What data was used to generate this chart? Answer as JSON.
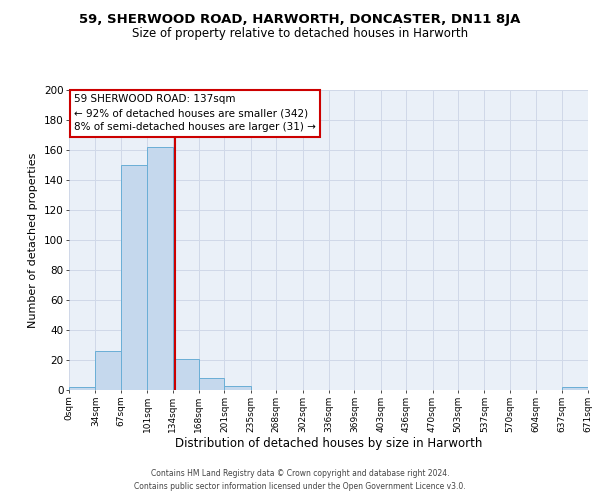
{
  "title": "59, SHERWOOD ROAD, HARWORTH, DONCASTER, DN11 8JA",
  "subtitle": "Size of property relative to detached houses in Harworth",
  "xlabel": "Distribution of detached houses by size in Harworth",
  "ylabel": "Number of detached properties",
  "bin_edges": [
    0,
    34,
    67,
    101,
    134,
    168,
    201,
    235,
    268,
    302,
    336,
    369,
    403,
    436,
    470,
    503,
    537,
    570,
    604,
    637,
    671
  ],
  "bar_heights": [
    2,
    26,
    150,
    162,
    21,
    8,
    3,
    0,
    0,
    0,
    0,
    0,
    0,
    0,
    0,
    0,
    0,
    0,
    0,
    2
  ],
  "bar_color": "#c5d8ed",
  "bar_edge_color": "#6aaed6",
  "vline_x": 137,
  "vline_color": "#cc0000",
  "ylim": [
    0,
    200
  ],
  "yticks": [
    0,
    20,
    40,
    60,
    80,
    100,
    120,
    140,
    160,
    180,
    200
  ],
  "tick_labels": [
    "0sqm",
    "34sqm",
    "67sqm",
    "101sqm",
    "134sqm",
    "168sqm",
    "201sqm",
    "235sqm",
    "268sqm",
    "302sqm",
    "336sqm",
    "369sqm",
    "403sqm",
    "436sqm",
    "470sqm",
    "503sqm",
    "537sqm",
    "570sqm",
    "604sqm",
    "637sqm",
    "671sqm"
  ],
  "annotation_text": "59 SHERWOOD ROAD: 137sqm\n← 92% of detached houses are smaller (342)\n8% of semi-detached houses are larger (31) →",
  "annotation_box_color": "#ffffff",
  "annotation_border_color": "#cc0000",
  "grid_color": "#d0d8e8",
  "background_color": "#eaf0f8",
  "footer_line1": "Contains HM Land Registry data © Crown copyright and database right 2024.",
  "footer_line2": "Contains public sector information licensed under the Open Government Licence v3.0.",
  "title_fontsize": 9.5,
  "subtitle_fontsize": 8.5,
  "xlabel_fontsize": 8.5,
  "ylabel_fontsize": 8,
  "tick_fontsize": 6.5,
  "ytick_fontsize": 7.5,
  "footer_fontsize": 5.5,
  "annotation_fontsize": 7.5
}
